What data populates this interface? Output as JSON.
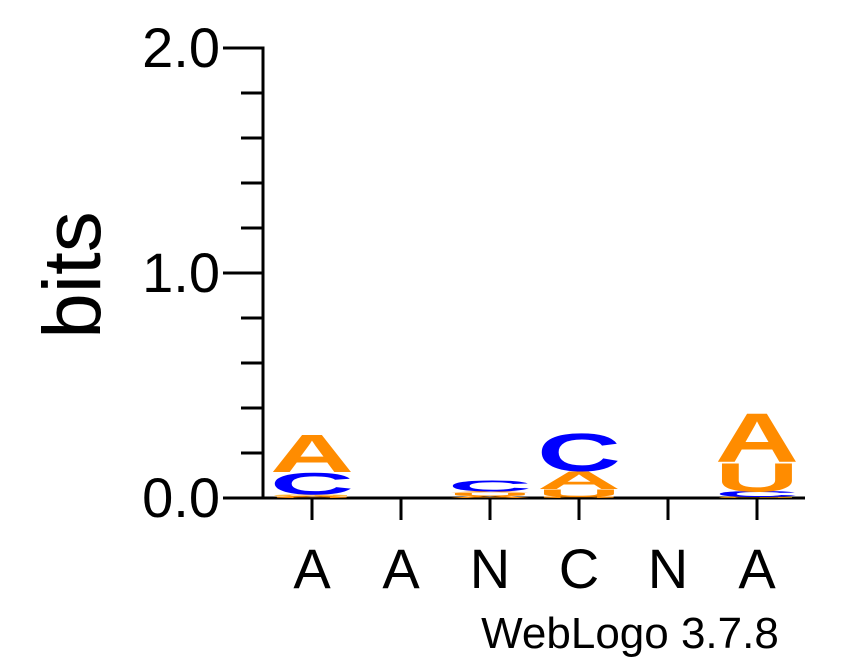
{
  "chart_data": {
    "type": "sequence-logo",
    "ylabel": "bits",
    "ylim": [
      0,
      2
    ],
    "yticks": [
      {
        "value": 0,
        "label": "0.0"
      },
      {
        "value": 1,
        "label": "1.0"
      },
      {
        "value": 2,
        "label": "2.0"
      }
    ],
    "positions": [
      {
        "label": "A",
        "stack": [
          {
            "letter": "U",
            "bits": 0.005
          },
          {
            "letter": "A",
            "bits": 0.005
          },
          {
            "letter": "G",
            "bits": 0.005
          },
          {
            "letter": "C",
            "bits": 0.1
          },
          {
            "letter": "A",
            "bits": 0.17
          }
        ]
      },
      {
        "label": "A",
        "stack": []
      },
      {
        "label": "N",
        "stack": [
          {
            "letter": "A",
            "bits": 0.01
          },
          {
            "letter": "U",
            "bits": 0.015
          },
          {
            "letter": "A",
            "bits": 0.005
          },
          {
            "letter": "C",
            "bits": 0.05
          }
        ]
      },
      {
        "label": "C",
        "stack": [
          {
            "letter": "U",
            "bits": 0.005
          },
          {
            "letter": "U",
            "bits": 0.035
          },
          {
            "letter": "A",
            "bits": 0.08
          },
          {
            "letter": "C",
            "bits": 0.17
          }
        ]
      },
      {
        "label": "N",
        "stack": []
      },
      {
        "label": "A",
        "stack": [
          {
            "letter": "G",
            "bits": 0.005
          },
          {
            "letter": "C",
            "bits": 0.025
          },
          {
            "letter": "U",
            "bits": 0.13
          },
          {
            "letter": "A",
            "bits": 0.22
          }
        ]
      }
    ],
    "colors": {
      "A": "#ff8c00",
      "C": "#0000ff",
      "G": "#ffa500",
      "U": "#ff8c00"
    },
    "footer": "WebLogo 3.7.8"
  }
}
